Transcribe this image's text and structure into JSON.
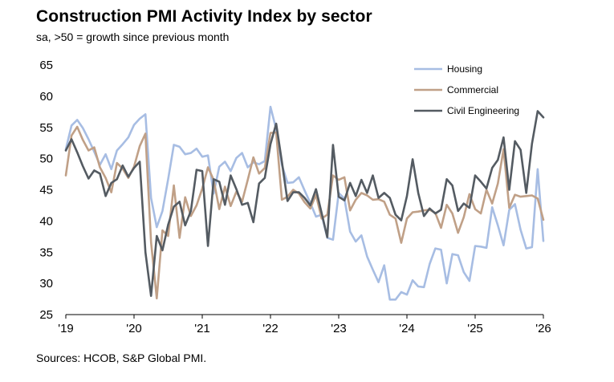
{
  "chart_data": {
    "type": "line",
    "title": "Construction PMI Activity Index by sector",
    "subtitle": "sa, >50 = growth since previous month",
    "source": "Sources: HCOB, S&P Global PMI.",
    "xlabel": "",
    "ylabel": "",
    "ylim": [
      25,
      65
    ],
    "y_ticks": [
      25,
      30,
      35,
      40,
      45,
      50,
      55,
      60,
      65
    ],
    "x_range": [
      2019.0,
      2026.0
    ],
    "x_ticks": [
      {
        "value": 2019,
        "label": "'19"
      },
      {
        "value": 2020,
        "label": "'20"
      },
      {
        "value": 2021,
        "label": "'21"
      },
      {
        "value": 2022,
        "label": "'22"
      },
      {
        "value": 2023,
        "label": "'23"
      },
      {
        "value": 2024,
        "label": "'24"
      },
      {
        "value": 2025,
        "label": "'25"
      },
      {
        "value": 2026,
        "label": "'26"
      }
    ],
    "legend_position": "top-right",
    "series": [
      {
        "name": "Housing",
        "color": "#a7bde3",
        "x_start": 2019.0,
        "step": 0.08333,
        "values": [
          51.5,
          55.3,
          56.2,
          54.9,
          53.1,
          51.1,
          49.0,
          50.7,
          48.3,
          51.3,
          52.3,
          53.4,
          55.4,
          56.4,
          57.1,
          43.7,
          39.0,
          41.6,
          46.7,
          52.2,
          51.9,
          50.7,
          50.9,
          51.6,
          50.3,
          50.5,
          44.4,
          48.7,
          49.5,
          48.0,
          50.1,
          50.9,
          48.6,
          49.4,
          49.1,
          49.6,
          58.3,
          54.7,
          49.0,
          46.1,
          46.2,
          47.0,
          44.9,
          42.9,
          40.7,
          41.0,
          37.3,
          37.0,
          44.5,
          43.6,
          38.3,
          36.7,
          37.7,
          34.3,
          32.2,
          30.2,
          32.9,
          27.4,
          27.4,
          28.6,
          28.2,
          30.5,
          29.5,
          29.4,
          33.1,
          35.6,
          35.4,
          30.0,
          34.7,
          34.5,
          31.8,
          30.4,
          36.0,
          35.9,
          35.7,
          42.2,
          39.3,
          36.1,
          41.8,
          42.7,
          38.6,
          35.6,
          35.8,
          48.3,
          36.8
        ]
      },
      {
        "name": "Commercial",
        "color": "#c0a087",
        "x_start": 2019.0,
        "step": 0.08333,
        "values": [
          47.3,
          53.7,
          55.1,
          53.0,
          51.3,
          51.8,
          48.6,
          46.9,
          44.6,
          49.3,
          48.4,
          46.9,
          48.7,
          52.0,
          54.0,
          36.6,
          27.6,
          38.5,
          37.6,
          45.7,
          37.3,
          43.8,
          40.8,
          42.5,
          45.2,
          48.6,
          46.6,
          41.9,
          45.5,
          42.4,
          44.7,
          43.1,
          46.6,
          50.2,
          47.6,
          48.5,
          54.1,
          54.2,
          43.4,
          43.9,
          45.0,
          44.4,
          43.0,
          42.0,
          44.2,
          40.4,
          41.0,
          47.3,
          46.6,
          47.0,
          41.7,
          43.4,
          44.5,
          44.1,
          43.4,
          43.5,
          43.1,
          41.0,
          40.4,
          36.5,
          40.4,
          41.4,
          41.5,
          41.7,
          41.8,
          41.3,
          38.9,
          42.6,
          41.2,
          38.1,
          40.6,
          44.3,
          41.9,
          41.2,
          45.0,
          42.8,
          46.0,
          51.5,
          42.1,
          44.2,
          43.9,
          44.0,
          44.1,
          43.6,
          40.2
        ]
      },
      {
        "name": "Civil Engineering",
        "color": "#545b62",
        "x_start": 2019.0,
        "step": 0.08333,
        "values": [
          51.3,
          53.1,
          51.0,
          48.8,
          46.8,
          48.1,
          47.6,
          44.0,
          46.1,
          46.7,
          48.9,
          47.1,
          48.5,
          49.5,
          35.0,
          28.0,
          37.6,
          35.3,
          39.4,
          42.3,
          43.1,
          39.3,
          41.6,
          48.2,
          48.0,
          36.0,
          46.7,
          46.3,
          42.6,
          47.3,
          45.1,
          42.6,
          42.9,
          39.8,
          46.0,
          46.9,
          52.3,
          55.6,
          49.5,
          43.2,
          44.6,
          44.6,
          43.7,
          42.5,
          45.1,
          41.3,
          37.4,
          52.2,
          43.9,
          43.3,
          46.1,
          44.0,
          46.6,
          44.5,
          47.3,
          43.7,
          44.5,
          43.7,
          41.0,
          40.1,
          44.0,
          49.9,
          44.5,
          40.8,
          42.0,
          41.2,
          41.8,
          46.7,
          45.7,
          41.6,
          42.8,
          42.1,
          47.3,
          46.3,
          45.2,
          48.5,
          49.8,
          53.4,
          45.0,
          52.8,
          51.4,
          44.5,
          52.4,
          57.6,
          56.6
        ]
      }
    ]
  }
}
